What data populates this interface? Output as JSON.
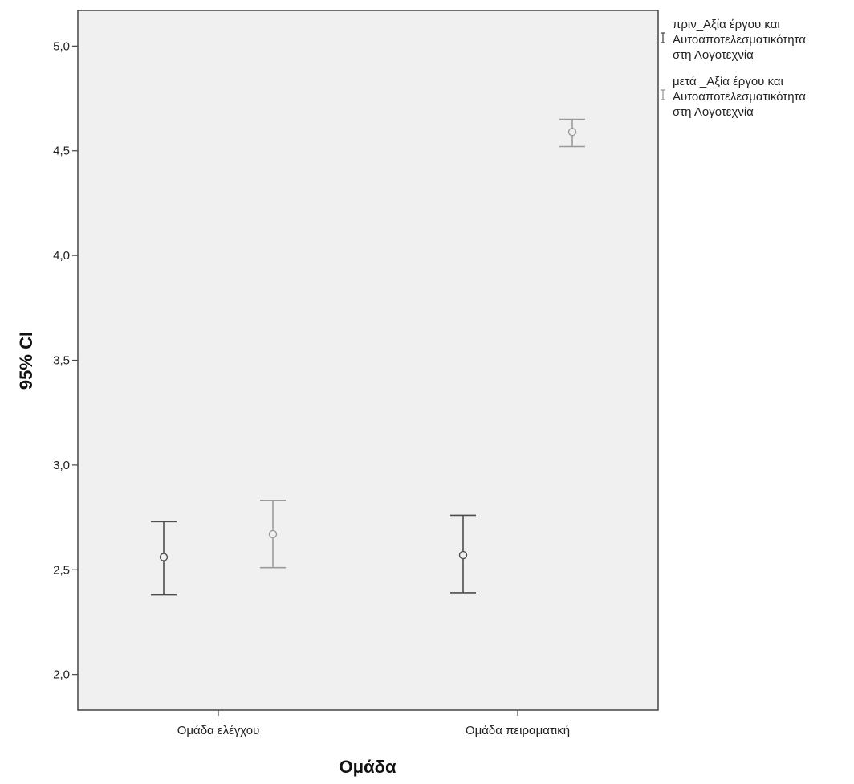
{
  "chart_data": {
    "type": "errorbar",
    "title": "",
    "xlabel": "Ομάδα",
    "ylabel": "95% CI",
    "ylim": [
      1.83,
      5.17
    ],
    "yticks": [
      {
        "value": 2.0,
        "label": "2,0"
      },
      {
        "value": 2.5,
        "label": "2,5"
      },
      {
        "value": 3.0,
        "label": "3,0"
      },
      {
        "value": 3.5,
        "label": "3,5"
      },
      {
        "value": 4.0,
        "label": "4,0"
      },
      {
        "value": 4.5,
        "label": "4,5"
      },
      {
        "value": 5.0,
        "label": "5,0"
      }
    ],
    "categories": [
      "Ομάδα ελέγχου",
      "Ομάδα πειραματική"
    ],
    "legend_position": "top-right-outside",
    "grid": false,
    "series": [
      {
        "name": "πριν_Αξία έργου και Αυτοαποτελεσματικότητα στη Λογοτεχνία",
        "color": "#4d4d4d",
        "points": [
          {
            "category": "Ομάδα ελέγχου",
            "mean": 2.56,
            "lower": 2.38,
            "upper": 2.73
          },
          {
            "category": "Ομάδα πειραματική",
            "mean": 2.57,
            "lower": 2.39,
            "upper": 2.76
          }
        ]
      },
      {
        "name": "μετά _Αξία έργου και Αυτοαποτελεσματικότητα στη Λογοτεχνία",
        "color": "#9a9a9a",
        "points": [
          {
            "category": "Ομάδα ελέγχου",
            "mean": 2.67,
            "lower": 2.51,
            "upper": 2.83
          },
          {
            "category": "Ομάδα πειραματική",
            "mean": 4.59,
            "lower": 4.52,
            "upper": 4.65
          }
        ]
      }
    ],
    "legend": [
      {
        "lines": [
          "πριν_Αξία έργου και",
          "Αυτοαποτελεσματικότητα",
          "στη Λογοτεχνία"
        ]
      },
      {
        "lines": [
          "μετά _Αξία έργου και",
          "Αυτοαποτελεσματικότητα",
          "στη Λογοτεχνία"
        ]
      }
    ]
  }
}
